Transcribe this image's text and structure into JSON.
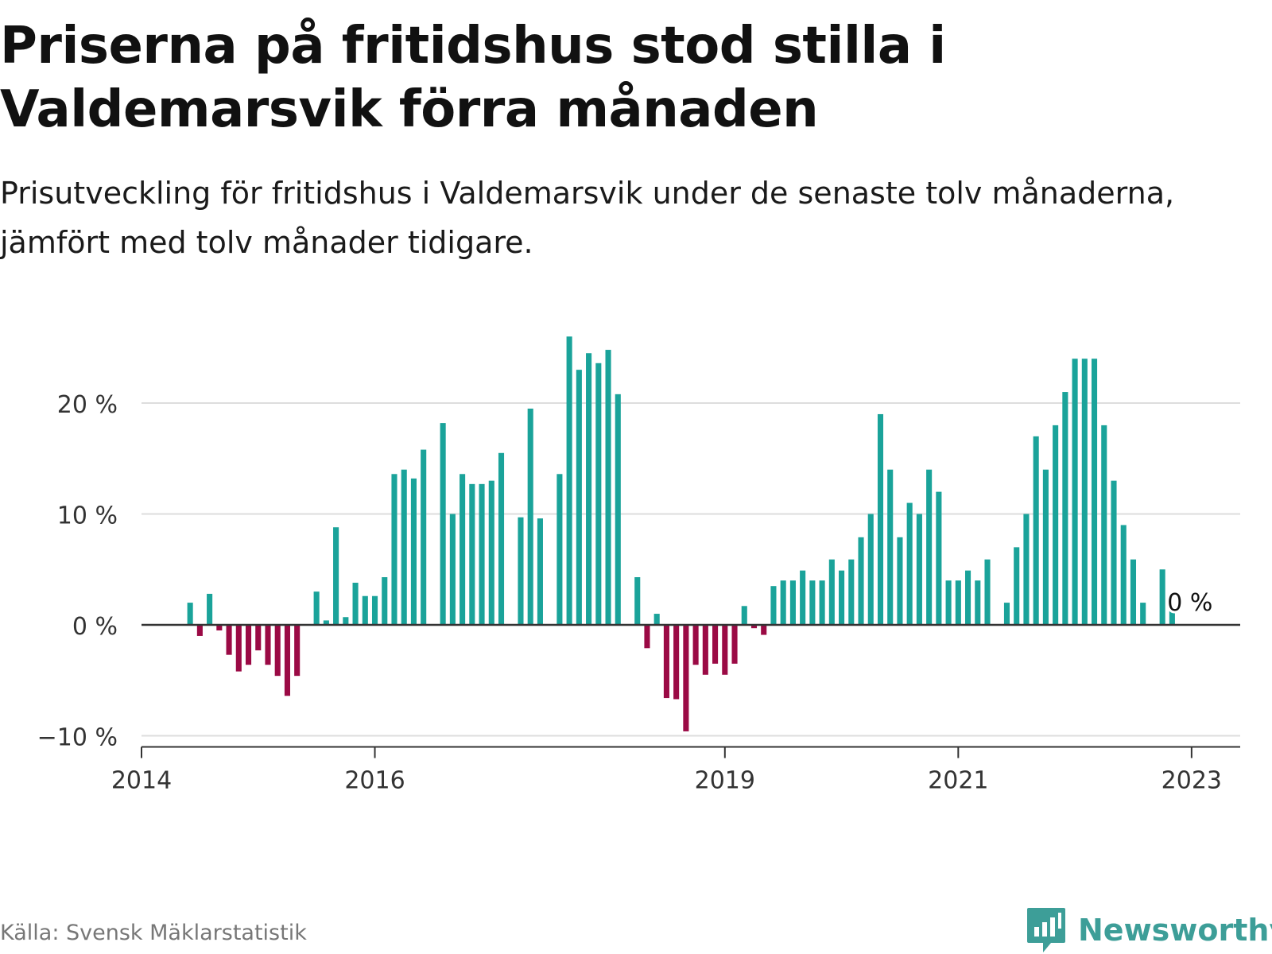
{
  "title": "Priserna på fritidshus stod stilla i Valdemarsvik förra månaden",
  "subtitle": "Prisutveckling för fritidshus i Valdemarsvik under de senaste tolv månaderna, jämfört med tolv månader tidigare.",
  "source": "Källa: Svensk Mäklarstatistik",
  "brand": "Newsworthy",
  "colors": {
    "positive": "#1aa39a",
    "negative": "#9b0a45",
    "grid": "#dddddd",
    "axis": "#333333",
    "brand": "#3d9e98"
  },
  "chart_data": {
    "type": "bar",
    "ylim": [
      -10,
      26
    ],
    "yticks": [
      -10,
      0,
      10,
      20
    ],
    "ytick_labels": [
      "−10 %",
      "0 %",
      "10 %",
      "20 %"
    ],
    "xlim": [
      "2014-01",
      "2023-06"
    ],
    "xticks": [
      "2014-01",
      "2016-01",
      "2019-01",
      "2021-01",
      "2023-01"
    ],
    "xtick_labels": [
      "2014",
      "2016",
      "2019",
      "2021",
      "2023"
    ],
    "grid": true,
    "annotation": {
      "x": "2023-01",
      "value": 0,
      "label": "0 %"
    },
    "series": [
      {
        "x": [
          "2014-06",
          "2014-07",
          "2014-08",
          "2014-09",
          "2014-10",
          "2014-11",
          "2014-12",
          "2015-01",
          "2015-02",
          "2015-03",
          "2015-04",
          "2015-05",
          "2015-06",
          "2015-07",
          "2015-08",
          "2015-09",
          "2015-10",
          "2015-11",
          "2015-12",
          "2016-01",
          "2016-02",
          "2016-03",
          "2016-04",
          "2016-05",
          "2016-06",
          "2016-07",
          "2016-08",
          "2016-09",
          "2016-10",
          "2016-11",
          "2016-12",
          "2017-01",
          "2017-02",
          "2017-03",
          "2017-04",
          "2017-05",
          "2017-06",
          "2017-07",
          "2017-08",
          "2017-09",
          "2017-10",
          "2017-11",
          "2017-12",
          "2018-01",
          "2018-02",
          "2018-03",
          "2018-04",
          "2018-05",
          "2018-06",
          "2018-07",
          "2018-08",
          "2018-09",
          "2018-10",
          "2018-11",
          "2018-12",
          "2019-01",
          "2019-02",
          "2019-03",
          "2019-04",
          "2019-05",
          "2019-06",
          "2019-07",
          "2019-08",
          "2019-09",
          "2019-10",
          "2019-11",
          "2019-12",
          "2020-01",
          "2020-02",
          "2020-03",
          "2020-04",
          "2020-05",
          "2020-06",
          "2020-07",
          "2020-08",
          "2020-09",
          "2020-10",
          "2020-11",
          "2020-12",
          "2021-01",
          "2021-02",
          "2021-03",
          "2021-04",
          "2021-05",
          "2021-06",
          "2021-07",
          "2021-08",
          "2021-09",
          "2021-10",
          "2021-11",
          "2021-12",
          "2022-01",
          "2022-02",
          "2022-03",
          "2022-04",
          "2022-05",
          "2022-06",
          "2022-07",
          "2022-08",
          "2022-09",
          "2022-10",
          "2022-11",
          "2022-12",
          "2023-01"
        ],
        "values": [
          2.0,
          -1.0,
          2.8,
          -0.5,
          -2.7,
          -4.2,
          -3.6,
          -2.3,
          -3.6,
          -4.6,
          -6.4,
          -4.6,
          null,
          3.0,
          0.4,
          8.8,
          0.7,
          3.8,
          2.6,
          2.6,
          4.3,
          13.6,
          14.0,
          13.2,
          15.8,
          null,
          18.2,
          10.0,
          13.6,
          12.7,
          12.7,
          13.0,
          15.5,
          null,
          9.7,
          19.5,
          9.6,
          null,
          13.6,
          26.0,
          23.0,
          24.5,
          23.6,
          24.8,
          20.8,
          null,
          4.3,
          -2.1,
          1.0,
          -6.6,
          -6.7,
          -9.6,
          -3.6,
          -4.5,
          -3.5,
          -4.5,
          -3.5,
          1.7,
          -0.3,
          -0.9,
          3.5,
          4.0,
          4.0,
          4.9,
          4.0,
          4.0,
          5.9,
          4.9,
          5.9,
          7.9,
          10.0,
          19.0,
          14.0,
          7.9,
          11.0,
          10.0,
          14.0,
          12.0,
          4.0,
          4.0,
          4.9,
          4.0,
          5.9,
          null,
          2.0,
          7.0,
          10.0,
          17.0,
          14.0,
          18.0,
          21.0,
          24.0,
          24.0,
          24.0,
          18.0,
          13.0,
          9.0,
          5.9,
          2.0,
          null,
          5.0,
          1.3,
          null,
          0
        ]
      }
    ]
  }
}
